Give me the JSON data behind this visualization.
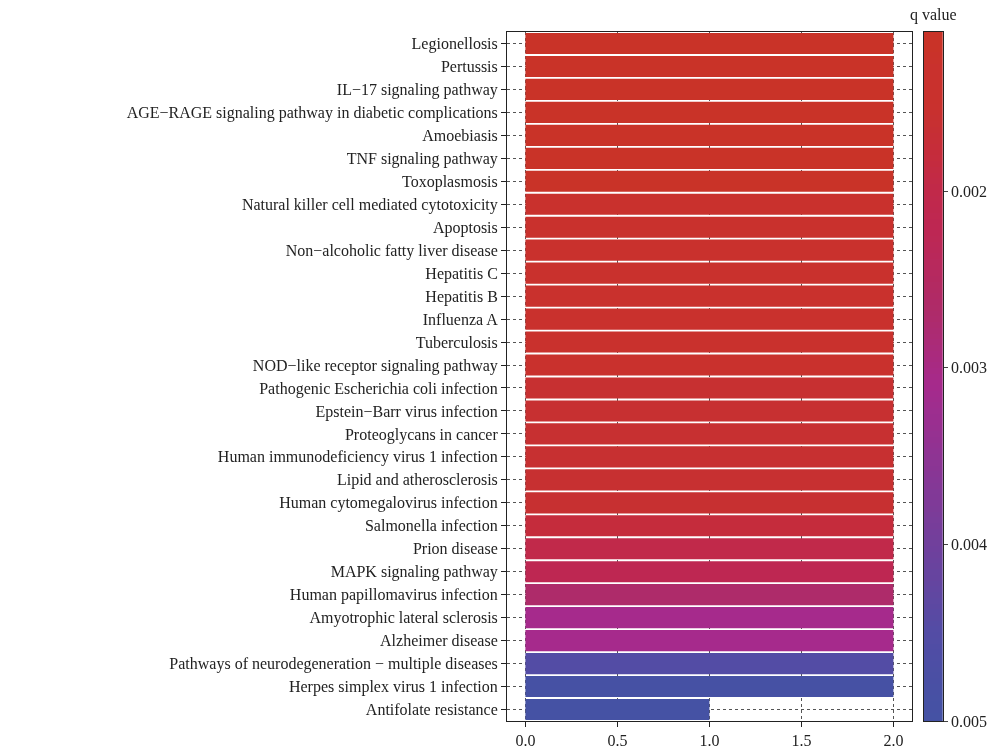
{
  "chart_data": {
    "type": "bar",
    "orientation": "horizontal",
    "clabel": "q value",
    "categories": [
      "Legionellosis",
      "Pertussis",
      "IL−17 signaling pathway",
      "AGE−RAGE signaling pathway in diabetic complications",
      "Amoebiasis",
      "TNF signaling pathway",
      "Toxoplasmosis",
      "Natural killer cell mediated cytotoxicity",
      "Apoptosis",
      "Non−alcoholic fatty liver disease",
      "Hepatitis C",
      "Hepatitis B",
      "Influenza A",
      "Tuberculosis",
      "NOD−like receptor signaling pathway",
      "Pathogenic Escherichia coli infection",
      "Epstein−Barr virus infection",
      "Proteoglycans in cancer",
      "Human immunodeficiency virus 1 infection",
      "Lipid and atherosclerosis",
      "Human cytomegalovirus infection",
      "Salmonella infection",
      "Prion disease",
      "MAPK signaling pathway",
      "Human papillomavirus infection",
      "Amyotrophic lateral sclerosis",
      "Alzheimer disease",
      "Pathways of neurodegeneration − multiple diseases",
      "Herpes simplex virus 1 infection",
      "Antifolate resistance"
    ],
    "values": [
      2,
      2,
      2,
      2,
      2,
      2,
      2,
      2,
      2,
      2,
      2,
      2,
      2,
      2,
      2,
      2,
      2,
      2,
      2,
      2,
      2,
      2,
      2,
      2,
      2,
      2,
      2,
      2,
      2,
      1
    ],
    "colors": [
      "#c93328",
      "#c93328",
      "#c93328",
      "#c93328",
      "#c93328",
      "#c93328",
      "#c93328",
      "#c9312d",
      "#c9312d",
      "#c9312d",
      "#c9312d",
      "#c9312d",
      "#c9312d",
      "#c9312d",
      "#c9312d",
      "#c73031",
      "#c73031",
      "#c73031",
      "#c73031",
      "#c73031",
      "#c73031",
      "#c52c3c",
      "#c1294a",
      "#be2752",
      "#ae2b6a",
      "#a62a8c",
      "#a62a8c",
      "#534ca5",
      "#4651a4",
      "#4552a4"
    ],
    "cvalues": [
      0.0011,
      0.0011,
      0.0011,
      0.0011,
      0.0012,
      0.0012,
      0.0012,
      0.0013,
      0.0013,
      0.0013,
      0.0014,
      0.0014,
      0.0014,
      0.0014,
      0.0015,
      0.0016,
      0.0016,
      0.0016,
      0.0016,
      0.0016,
      0.0016,
      0.0018,
      0.002,
      0.0022,
      0.0027,
      0.0031,
      0.0031,
      0.0045,
      0.0049,
      0.005
    ],
    "xlim": [
      -0.1,
      2.1
    ],
    "xticks": [
      {
        "value": 0,
        "label": "0.0"
      },
      {
        "value": 0.5,
        "label": "0.5"
      },
      {
        "value": 1,
        "label": "1.0"
      },
      {
        "value": 1.5,
        "label": "1.5"
      },
      {
        "value": 2,
        "label": "2.0"
      }
    ],
    "clim": [
      0.005,
      0.0011
    ],
    "cticks": [
      0.002,
      0.003,
      0.004,
      0.005
    ],
    "grid": true,
    "line_style": "dotted"
  }
}
